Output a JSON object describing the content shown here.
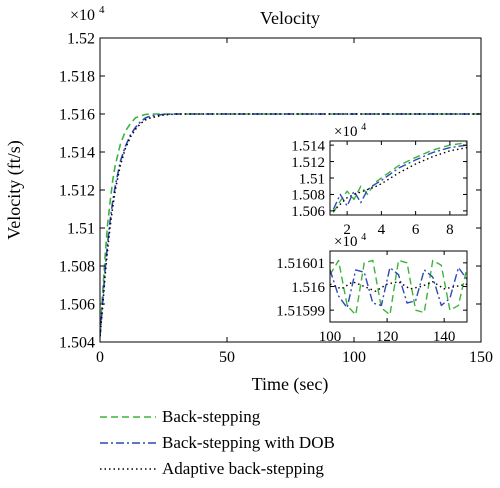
{
  "chart_data": [
    {
      "type": "line",
      "title": "Velocity",
      "xlabel": "Time (sec)",
      "ylabel": "Velocity (ft/s)",
      "y_multiplier": "×10",
      "y_multiplier_exp": "4",
      "xlim": [
        0,
        150
      ],
      "ylim": [
        1.504,
        1.52
      ],
      "xticks": [
        "0",
        "50",
        "100",
        "150"
      ],
      "yticks": [
        "1.504",
        "1.506",
        "1.508",
        "1.51",
        "1.512",
        "1.514",
        "1.516",
        "1.518",
        "1.52"
      ],
      "grid": false,
      "legend_position": "below",
      "series": [
        {
          "name": "Back-stepping",
          "color": "#3cb43c",
          "dash": "dashed",
          "x": [
            0,
            1,
            2,
            3,
            4,
            5,
            6,
            8,
            10,
            12,
            14,
            16,
            18,
            20,
            25,
            30,
            40,
            50,
            80,
            110,
            150
          ],
          "values": [
            1.5043,
            1.5065,
            1.5085,
            1.5102,
            1.5114,
            1.5125,
            1.5133,
            1.5144,
            1.5151,
            1.5155,
            1.5158,
            1.5159,
            1.51598,
            1.516,
            1.516,
            1.516,
            1.516,
            1.516,
            1.516,
            1.516,
            1.516
          ]
        },
        {
          "name": "Back-stepping with DOB",
          "color": "#2d49b4",
          "dash": "dashdot",
          "x": [
            0,
            1,
            2,
            3,
            4,
            5,
            6,
            8,
            10,
            12,
            14,
            16,
            18,
            20,
            25,
            30,
            40,
            50,
            80,
            110,
            150
          ],
          "values": [
            1.5043,
            1.506,
            1.5078,
            1.5092,
            1.5104,
            1.5114,
            1.5122,
            1.5135,
            1.5143,
            1.5149,
            1.5153,
            1.5156,
            1.5158,
            1.5159,
            1.51598,
            1.516,
            1.516,
            1.516,
            1.516,
            1.516,
            1.516
          ]
        },
        {
          "name": "Adaptive back-stepping",
          "color": "#000000",
          "dash": "dotted",
          "x": [
            0,
            1,
            2,
            3,
            4,
            5,
            6,
            8,
            10,
            12,
            14,
            16,
            18,
            20,
            25,
            30,
            40,
            50,
            80,
            110,
            150
          ],
          "values": [
            1.5043,
            1.5058,
            1.5075,
            1.5089,
            1.5101,
            1.5111,
            1.512,
            1.5133,
            1.5142,
            1.5148,
            1.5152,
            1.5155,
            1.5157,
            1.5158,
            1.51595,
            1.516,
            1.516,
            1.516,
            1.516,
            1.516,
            1.516
          ]
        }
      ]
    },
    {
      "type": "line",
      "title": "",
      "y_multiplier": "×10",
      "y_multiplier_exp": "4",
      "xlim": [
        1,
        9
      ],
      "ylim": [
        1.5055,
        1.5145
      ],
      "xticks": [
        "2",
        "4",
        "6",
        "8"
      ],
      "yticks": [
        "1.506",
        "1.508",
        "1.51",
        "1.512",
        "1.514"
      ],
      "series": [
        {
          "name": "Back-stepping",
          "color": "#3cb43c",
          "dash": "dashed",
          "x": [
            1.2,
            1.6,
            2.0,
            2.4,
            2.8,
            3.2,
            3.6,
            4.0,
            5.0,
            6.0,
            7.0,
            8.0,
            9.0
          ],
          "values": [
            1.5058,
            1.5072,
            1.5084,
            1.5074,
            1.509,
            1.508,
            1.5094,
            1.51,
            1.5115,
            1.5125,
            1.5134,
            1.514,
            1.5143
          ]
        },
        {
          "name": "Back-stepping with DOB",
          "color": "#2d49b4",
          "dash": "dashdot",
          "x": [
            1.2,
            1.6,
            2.0,
            2.4,
            2.8,
            3.2,
            3.6,
            4.0,
            5.0,
            6.0,
            7.0,
            8.0,
            9.0
          ],
          "values": [
            1.5062,
            1.508,
            1.5066,
            1.5084,
            1.507,
            1.5086,
            1.5092,
            1.5097,
            1.5112,
            1.5122,
            1.5131,
            1.5137,
            1.514
          ]
        },
        {
          "name": "Adaptive back-stepping",
          "color": "#000000",
          "dash": "dotted",
          "x": [
            1.2,
            1.6,
            2.0,
            2.4,
            2.8,
            3.2,
            3.6,
            4.0,
            5.0,
            6.0,
            7.0,
            8.0,
            9.0
          ],
          "values": [
            1.506,
            1.5068,
            1.5076,
            1.508,
            1.5083,
            1.5086,
            1.5089,
            1.5093,
            1.5106,
            1.5117,
            1.5126,
            1.5133,
            1.5137
          ]
        }
      ]
    },
    {
      "type": "line",
      "title": "",
      "y_multiplier": "×10",
      "y_multiplier_exp": "4",
      "xlim": [
        100,
        148
      ],
      "ylim": [
        1.515985,
        1.516015
      ],
      "xticks": [
        "100",
        "120",
        "140"
      ],
      "yticks": [
        "1.51599",
        "1.516",
        "1.51601"
      ],
      "series": [
        {
          "name": "Back-stepping",
          "color": "#3cb43c",
          "dash": "dashed",
          "x": [
            100,
            103,
            106,
            109,
            112,
            115,
            118,
            121,
            124,
            127,
            130,
            133,
            136,
            139,
            142,
            145,
            148
          ],
          "values": [
            1.516005,
            1.516011,
            1.515992,
            1.515988,
            1.51601,
            1.516011,
            1.515991,
            1.515988,
            1.516011,
            1.51601,
            1.51599,
            1.515989,
            1.516011,
            1.516009,
            1.51599,
            1.515992,
            1.516008
          ]
        },
        {
          "name": "Back-stepping with DOB",
          "color": "#2d49b4",
          "dash": "dashdot",
          "x": [
            100,
            103,
            106,
            109,
            112,
            115,
            118,
            121,
            124,
            127,
            130,
            133,
            136,
            139,
            142,
            145,
            148
          ],
          "values": [
            1.516007,
            1.515996,
            1.515991,
            1.516007,
            1.516006,
            1.515993,
            1.515992,
            1.516008,
            1.516005,
            1.515993,
            1.515994,
            1.516007,
            1.516004,
            1.515992,
            1.515995,
            1.516008,
            1.516003
          ]
        },
        {
          "name": "Adaptive back-stepping",
          "color": "#000000",
          "dash": "dotted",
          "x": [
            100,
            104,
            108,
            112,
            116,
            120,
            124,
            128,
            132,
            136,
            140,
            144,
            148
          ],
          "values": [
            1.516001,
            1.515999,
            1.516002,
            1.516,
            1.515998,
            1.516001,
            1.516002,
            1.515999,
            1.516,
            1.516002,
            1.515999,
            1.516,
            1.516001
          ]
        }
      ]
    }
  ]
}
